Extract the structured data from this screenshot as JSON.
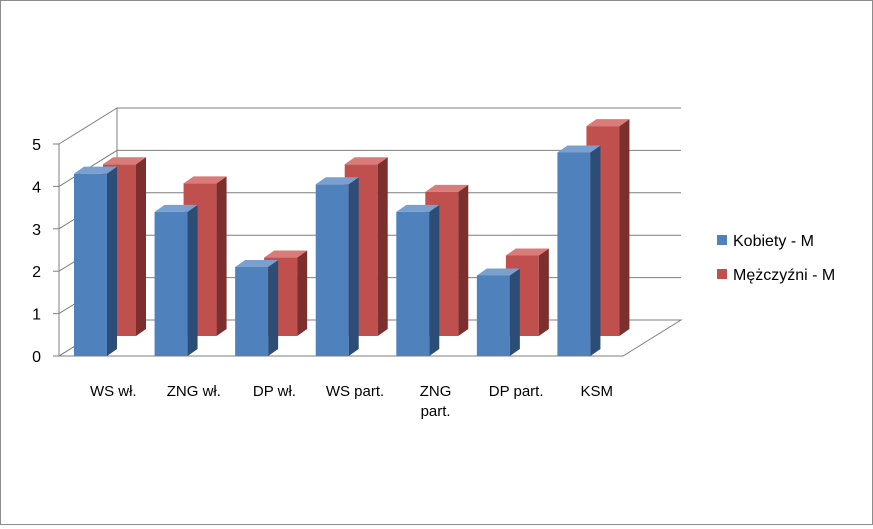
{
  "chart_data": {
    "type": "bar",
    "categories": [
      [
        "WS wł."
      ],
      [
        "ZNG wł."
      ],
      [
        "DP wł."
      ],
      [
        "WS part."
      ],
      [
        "ZNG",
        "part."
      ],
      [
        "DP part."
      ],
      [
        "KSM"
      ]
    ],
    "series": [
      {
        "name": "Kobiety - M",
        "values": [
          4.3,
          3.4,
          2.1,
          4.05,
          3.4,
          1.9,
          4.8
        ]
      },
      {
        "name": "Mężczyźni - M",
        "values": [
          4.05,
          3.6,
          1.85,
          4.05,
          3.4,
          1.9,
          4.95
        ]
      }
    ],
    "ylim": [
      0,
      5
    ],
    "yticks": [
      "0",
      "1",
      "2",
      "3",
      "4",
      "5"
    ],
    "grid": true,
    "legend_position": "right",
    "colors": {
      "series_front": [
        "#4f81bd",
        "#c0504d"
      ],
      "series_side": [
        "#2c4d75",
        "#7d2f2e"
      ],
      "series_top": [
        "#7aa0d0",
        "#d97b78"
      ],
      "grid": "#7f7f7f",
      "floor": "#7f7f7f"
    }
  }
}
